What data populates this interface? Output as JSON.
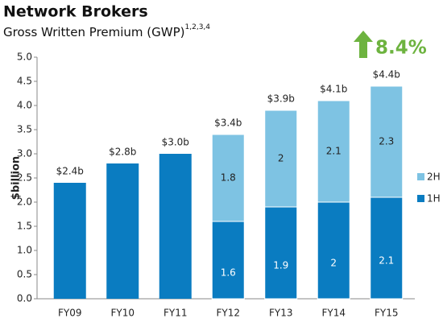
{
  "chart_data": {
    "type": "stacked_bar",
    "title": "Network Brokers",
    "subtitle": "Gross Written Premium (GWP)",
    "subtitle_superscript": "1,2,3,4",
    "annotation": "8.4%",
    "y_label": "$billion",
    "categories": [
      "FY09",
      "FY10",
      "FY11",
      "FY12",
      "FY13",
      "FY14",
      "FY15"
    ],
    "series": [
      {
        "name": "1H",
        "color": "#0a7cc1",
        "values": [
          null,
          null,
          null,
          1.6,
          1.9,
          2.0,
          2.1
        ]
      },
      {
        "name": "2H",
        "color": "#7ec3e3",
        "values": [
          null,
          null,
          null,
          1.8,
          2.0,
          2.1,
          2.3
        ]
      }
    ],
    "totals": {
      "values": [
        2.4,
        2.8,
        3.0,
        3.4,
        3.9,
        4.1,
        4.4
      ],
      "value_labels": [
        "$2.4b",
        "$2.8b",
        "$3.0b",
        "$3.4b",
        "$3.9b",
        "$4.1b",
        "$4.4b"
      ]
    },
    "ylim": [
      0,
      5
    ],
    "yticks": [
      {
        "value": 0,
        "label": "0.0"
      },
      0.5,
      {
        "value": 1,
        "label": "1.0"
      },
      1.5,
      {
        "value": 2,
        "label": "2.0"
      },
      2.5,
      {
        "value": 3,
        "label": "3.0"
      },
      3.5,
      {
        "value": 4,
        "label": "4.0"
      },
      4.5,
      {
        "value": 5,
        "label": "5.0"
      }
    ],
    "grid": false,
    "legend": "right"
  }
}
